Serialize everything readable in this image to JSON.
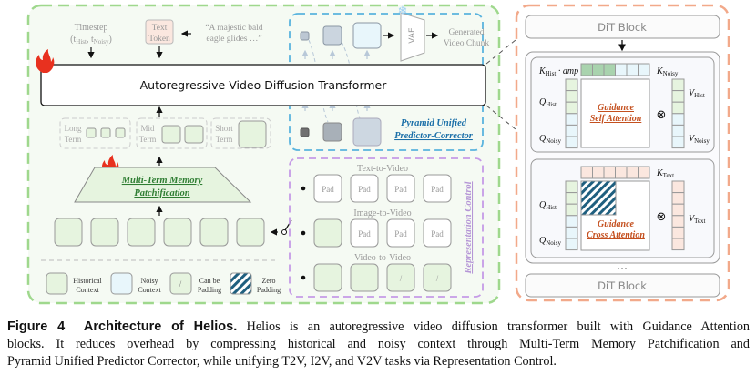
{
  "figure": {
    "timestep_label": "Timestep",
    "timestep_args": {
      "open": "(t",
      "hist_sub": "Hist",
      "sep": ", t",
      "noisy_sub": "Noisy",
      "close": ")"
    },
    "text_token": [
      "Text",
      "Token"
    ],
    "prompt": [
      "“A majestic bald",
      "eagle glides …”"
    ],
    "vae_label": "VAE",
    "generated_chunk": [
      "Generated",
      "Video Chunk"
    ],
    "transformer_title": "Autoregressive Video Diffusion Transformer",
    "pyramid_label": [
      "Pyramid Unified",
      "Predictor-Corrector"
    ],
    "terms": {
      "long": [
        "Long",
        "Term"
      ],
      "mid": [
        "Mid",
        "Term"
      ],
      "short": [
        "Short",
        "Term"
      ]
    },
    "patchification_label": [
      "Multi-Term Memory",
      "Patchification"
    ],
    "representation_control": "Representation Control",
    "modes": [
      {
        "label": "Text-to-Video",
        "cells": [
          "Pad",
          "Pad",
          "Pad",
          "Pad"
        ]
      },
      {
        "label": "Image-to-Video",
        "cells": [
          "",
          "Pad",
          "Pad",
          "Pad"
        ]
      },
      {
        "label": "Video-to-Video",
        "cells": [
          "",
          "",
          "/",
          "/"
        ]
      }
    ],
    "legend": {
      "historical": [
        "Historical",
        "Context"
      ],
      "noisy": [
        "Noisy",
        "Context"
      ],
      "padding_mark": "/",
      "can_pad": [
        "Can be",
        "Padding"
      ],
      "zero_pad": [
        "Zero",
        "Padding"
      ]
    },
    "dit_block": "DiT Block",
    "ellipsis": "…",
    "self_attention": {
      "title": [
        "Guidance",
        "Self Attention"
      ],
      "k_hist": "K",
      "k_hist_sub": "Hist",
      "k_hist_amp": " · amp",
      "k_noisy": "K",
      "k_noisy_sub": "Noisy",
      "q_hist": "Q",
      "q_hist_sub": "Hist",
      "q_noisy": "Q",
      "q_noisy_sub": "Noisy",
      "v_hist": "V",
      "v_hist_sub": "Hist",
      "v_noisy": "V",
      "v_noisy_sub": "Noisy",
      "op": "⊗"
    },
    "cross_attention": {
      "title": [
        "Guidance",
        "Cross Attention"
      ],
      "k_text": "K",
      "k_text_sub": "Text",
      "q_hist": "Q",
      "q_hist_sub": "Hist",
      "q_noisy": "Q",
      "q_noisy_sub": "Noisy",
      "v_text": "V",
      "v_text_sub": "Text",
      "op": "⊗"
    },
    "colors": {
      "historical": "#e6f4df",
      "historical_dark": "#a9d3ae",
      "noisy": "#e8f6fb",
      "text": "#fbe7df",
      "green_border": "#9fd88d",
      "blue_border": "#5ab4de",
      "purple_border": "#c59be6",
      "peach_border": "#f2a98a",
      "patch_text": "#2e7d32",
      "pyramid_text": "#1b6fa8",
      "attention_text": "#c4501f",
      "hatch": "#1f5f7f",
      "fire": "#e8311f"
    }
  },
  "caption": {
    "label": "Figure 4",
    "title": "Architecture of Helios.",
    "lines": [
      "Helios is an autoregressive video diffusion transformer built with Guidance Attention",
      "blocks. It reduces overhead by compressing historical and noisy context through Multi-Term Memory Patchification and",
      "Pyramid Unified Predictor Corrector, while unifying T2V, I2V, and V2V tasks via Representation Control."
    ]
  }
}
